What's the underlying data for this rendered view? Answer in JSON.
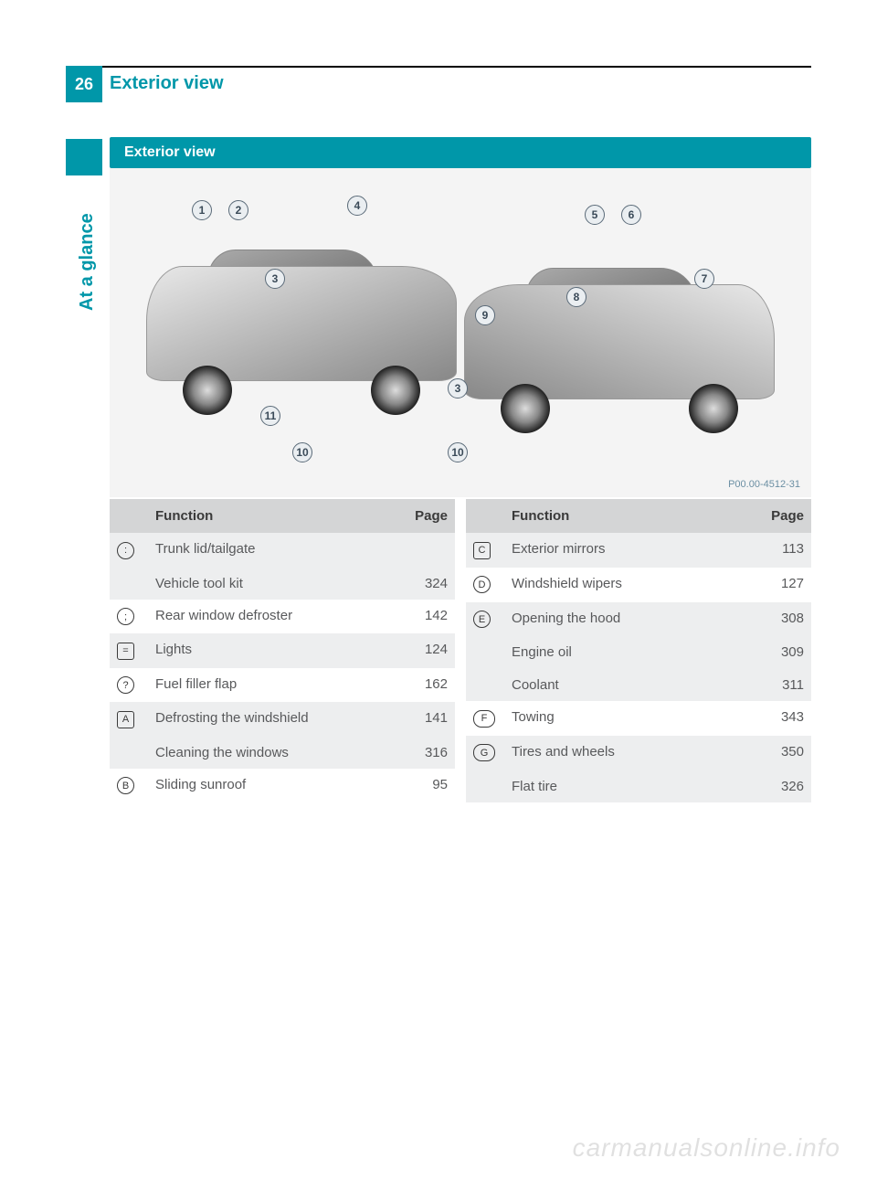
{
  "page_number": "26",
  "page_title": "Exterior view",
  "side_label": "At a glance",
  "section_heading": "Exterior view",
  "diagram_ref": "P00.00-4512-31",
  "colors": {
    "accent": "#0097a9",
    "header_bg": "#d4d5d6",
    "alt_row": "#edeeef",
    "text": "#58595b"
  },
  "callouts": [
    "1",
    "2",
    "3",
    "4",
    "5",
    "6",
    "7",
    "8",
    "9",
    "10",
    "11"
  ],
  "table_left": {
    "headers": {
      "func": "Function",
      "page": "Page"
    },
    "rows": [
      {
        "marker": ":",
        "shape": "circle",
        "lines": [
          {
            "t": "Trunk lid/tailgate",
            "p": ""
          },
          {
            "t": "Vehicle tool kit",
            "p": "324"
          }
        ],
        "alt": true
      },
      {
        "marker": ";",
        "shape": "circle",
        "lines": [
          {
            "t": "Rear window defroster",
            "p": "142"
          }
        ],
        "alt": false
      },
      {
        "marker": "=",
        "shape": "square",
        "lines": [
          {
            "t": "Lights",
            "p": "124"
          }
        ],
        "alt": true
      },
      {
        "marker": "?",
        "shape": "circle",
        "lines": [
          {
            "t": "Fuel filler flap",
            "p": "162"
          }
        ],
        "alt": false
      },
      {
        "marker": "A",
        "shape": "square",
        "lines": [
          {
            "t": "Defrosting the windshield",
            "p": "141"
          },
          {
            "t": "Cleaning the windows",
            "p": "316"
          }
        ],
        "alt": true
      },
      {
        "marker": "B",
        "shape": "circle",
        "lines": [
          {
            "t": "Sliding sunroof",
            "p": "95"
          }
        ],
        "alt": false
      }
    ]
  },
  "table_right": {
    "headers": {
      "func": "Function",
      "page": "Page"
    },
    "rows": [
      {
        "marker": "C",
        "shape": "square",
        "lines": [
          {
            "t": "Exterior mirrors",
            "p": "113"
          }
        ],
        "alt": true
      },
      {
        "marker": "D",
        "shape": "circle",
        "lines": [
          {
            "t": "Windshield wipers",
            "p": "127"
          }
        ],
        "alt": false
      },
      {
        "marker": "E",
        "shape": "circle",
        "lines": [
          {
            "t": "Opening the hood",
            "p": "308"
          },
          {
            "t": "Engine oil",
            "p": "309"
          },
          {
            "t": "Coolant",
            "p": "311"
          }
        ],
        "alt": true
      },
      {
        "marker": "F",
        "shape": "rounded",
        "lines": [
          {
            "t": "Towing",
            "p": "343"
          }
        ],
        "alt": false
      },
      {
        "marker": "G",
        "shape": "rounded",
        "lines": [
          {
            "t": "Tires and wheels",
            "p": "350"
          },
          {
            "t": "Flat tire",
            "p": "326"
          }
        ],
        "alt": true
      }
    ]
  },
  "watermark": "carmanualsonline.info"
}
